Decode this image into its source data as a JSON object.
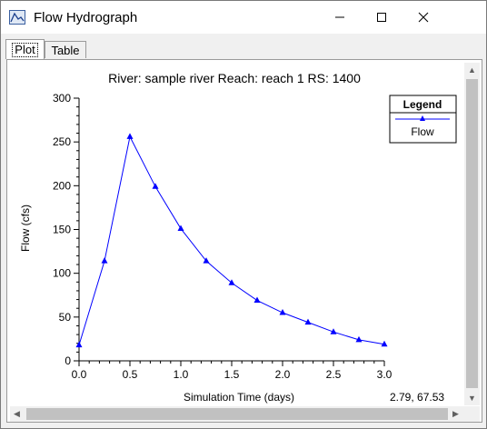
{
  "window": {
    "title": "Flow Hydrograph"
  },
  "tabs": [
    {
      "label": "Plot",
      "active": true
    },
    {
      "label": "Table",
      "active": false
    }
  ],
  "cursor_readout": "2.79, 67.53",
  "colors": {
    "series": "#0000ff",
    "axis": "#000000",
    "background": "#ffffff"
  },
  "chart_data": {
    "type": "line",
    "title": "River: sample river  Reach: reach 1  RS: 1400",
    "xlabel": "Simulation Time (days)",
    "ylabel": "Flow (cfs)",
    "xlim": [
      0.0,
      3.0
    ],
    "ylim": [
      0,
      300
    ],
    "xticks": [
      "0.0",
      "0.5",
      "1.0",
      "1.5",
      "2.0",
      "2.5",
      "3.0"
    ],
    "yticks": [
      "0",
      "50",
      "100",
      "150",
      "200",
      "250",
      "300"
    ],
    "grid": false,
    "legend": {
      "title": "Legend",
      "placement": "top-right"
    },
    "series": [
      {
        "name": "Flow",
        "x": [
          0.0,
          0.25,
          0.5,
          0.75,
          1.0,
          1.25,
          1.5,
          1.75,
          2.0,
          2.25,
          2.5,
          2.75,
          3.0
        ],
        "y": [
          18,
          114,
          256,
          199,
          151,
          114,
          89,
          69,
          55,
          44,
          33,
          24,
          19
        ]
      }
    ]
  }
}
